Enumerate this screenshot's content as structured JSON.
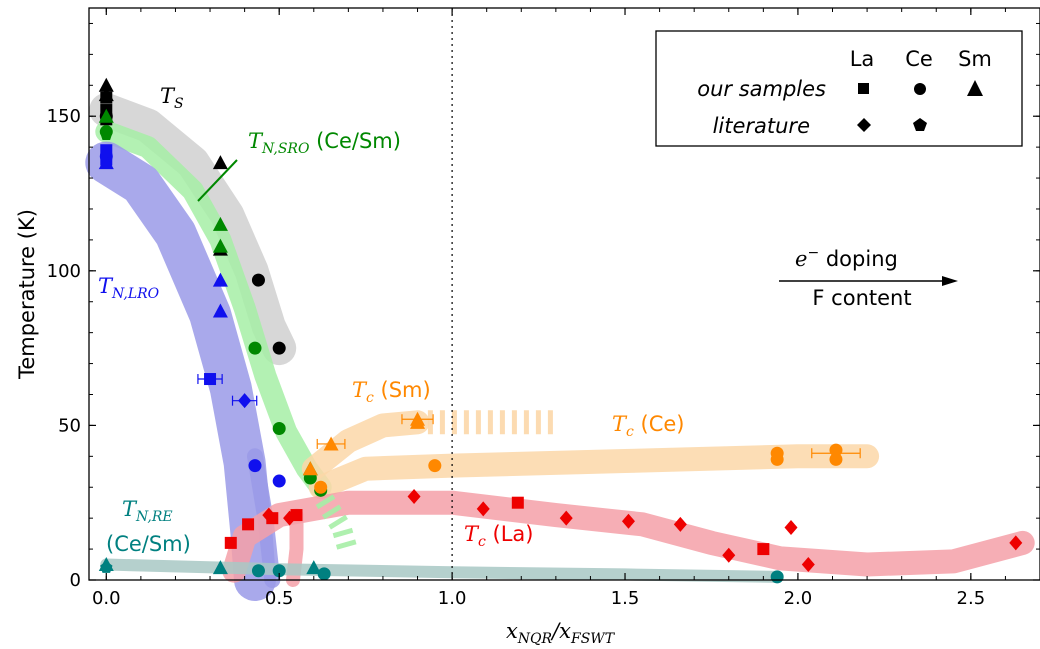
{
  "colors": {
    "La": "#ee0000",
    "Ce_green": "#008800",
    "blue": "#1010ee",
    "black": "#000000",
    "orange": "#ff8800",
    "teal": "#008080",
    "band_gray": "#d0d0d0",
    "band_green": "#a6eea6",
    "band_blue": "#9a9ae8",
    "band_orange": "#fcd7a8",
    "band_red": "#f5a0a8",
    "band_teal": "#a8c8c4"
  },
  "legend": {
    "col_la": "La",
    "col_ce": "Ce",
    "col_sm": "Sm",
    "row_ours": "our samples",
    "row_lit": "literature"
  },
  "labels": {
    "ts_main": "T",
    "ts_sub": "S",
    "tnsro_main": "T",
    "tnsro_sub": "N,SRO",
    "tnsro_suffix": " (Ce/Sm)",
    "tnlro_main": "T",
    "tnlro_sub": "N,LRO",
    "tnre_main": "T",
    "tnre_sub": "N,RE",
    "tnre_line2": "(Ce/Sm)",
    "tc_sm_main": "T",
    "tc_sm_sub": "c",
    "tc_sm_suffix": " (Sm)",
    "tc_ce_main": "T",
    "tc_ce_sub": "c",
    "tc_ce_suffix": " (Ce)",
    "tc_la_main": "T",
    "tc_la_sub": "c",
    "tc_la_suffix": " (La)",
    "doping_main": "e",
    "doping_sup": "−",
    "doping_suffix": "  doping",
    "f_content": "F content"
  },
  "chart_data": {
    "type": "scatter",
    "xlabel_main": "x",
    "xlabel_sub1": "NQR",
    "xlabel_sep": "/x",
    "xlabel_sub2": "FSWT",
    "ylabel": "Temperature (K)",
    "xlim": [
      -0.05,
      2.7
    ],
    "ylim": [
      0,
      185
    ],
    "xticks": [
      "0.0",
      "0.5",
      "1.0",
      "1.5",
      "2.0",
      "2.5"
    ],
    "xtick_values": [
      0,
      0.5,
      1.0,
      1.5,
      2.0,
      2.5
    ],
    "yticks": [
      "0",
      "50",
      "100",
      "150"
    ],
    "ytick_values": [
      0,
      50,
      100,
      150
    ],
    "dotted_vline_x": 1.0,
    "series": [
      {
        "element": "La",
        "color": "black",
        "marker": "square",
        "points": [
          [
            0,
            156
          ],
          [
            0,
            152
          ],
          [
            0,
            149
          ]
        ]
      },
      {
        "element": "Ce",
        "color": "black",
        "marker": "circle",
        "points": [
          [
            0,
            150
          ],
          [
            0.44,
            97
          ],
          [
            0.5,
            75
          ]
        ]
      },
      {
        "element": "Sm",
        "color": "black",
        "marker": "triangle",
        "points": [
          [
            0,
            160
          ],
          [
            0,
            157
          ],
          [
            0.33,
            135
          ],
          [
            0.33,
            107
          ]
        ]
      },
      {
        "element": "Ce",
        "color": "green",
        "marker": "circle",
        "points": [
          [
            0,
            145
          ],
          [
            0.43,
            75
          ],
          [
            0.5,
            49
          ],
          [
            0.59,
            33
          ],
          [
            0.62,
            29
          ]
        ]
      },
      {
        "element": "Ce",
        "color": "green",
        "marker": "pentagon",
        "points": [
          [
            0,
            144
          ]
        ]
      },
      {
        "element": "Sm",
        "color": "green",
        "marker": "triangle",
        "points": [
          [
            0,
            150
          ],
          [
            0.33,
            115
          ],
          [
            0.33,
            108
          ],
          [
            0.59,
            36
          ]
        ]
      },
      {
        "element": "La",
        "color": "blue",
        "marker": "square",
        "points": [
          [
            0,
            139
          ],
          [
            0,
            136
          ],
          [
            0.3,
            65
          ]
        ]
      },
      {
        "element": "La",
        "color": "blue",
        "marker": "diamond",
        "points": [
          [
            0.4,
            58
          ]
        ]
      },
      {
        "element": "Ce",
        "color": "blue",
        "marker": "circle",
        "points": [
          [
            0,
            137
          ],
          [
            0.43,
            37
          ],
          [
            0.5,
            32
          ]
        ]
      },
      {
        "element": "Sm",
        "color": "blue",
        "marker": "triangle",
        "points": [
          [
            0,
            135
          ],
          [
            0.33,
            97
          ],
          [
            0.33,
            87
          ]
        ]
      },
      {
        "element": "Sm",
        "color": "orange",
        "marker": "triangle",
        "points": [
          [
            0.9,
            52
          ],
          [
            0.9,
            51
          ],
          [
            0.65,
            44
          ],
          [
            0.59,
            36
          ]
        ]
      },
      {
        "element": "Ce",
        "color": "orange",
        "marker": "circle",
        "points": [
          [
            0.95,
            37
          ],
          [
            1.94,
            41
          ],
          [
            1.94,
            39
          ],
          [
            2.11,
            42
          ],
          [
            2.11,
            39
          ],
          [
            0.62,
            30
          ]
        ]
      },
      {
        "element": "La",
        "color": "red",
        "marker": "square",
        "points": [
          [
            0.36,
            12
          ],
          [
            0.41,
            18
          ],
          [
            0.48,
            20
          ],
          [
            0.55,
            21
          ],
          [
            1.19,
            25
          ],
          [
            1.9,
            10
          ]
        ]
      },
      {
        "element": "La",
        "color": "red",
        "marker": "diamond",
        "points": [
          [
            0.47,
            21
          ],
          [
            0.53,
            20
          ],
          [
            0.89,
            27
          ],
          [
            1.09,
            23
          ],
          [
            1.33,
            20
          ],
          [
            1.51,
            19
          ],
          [
            1.66,
            18
          ],
          [
            1.98,
            17
          ],
          [
            1.8,
            8
          ],
          [
            2.03,
            5
          ],
          [
            2.63,
            12
          ]
        ]
      },
      {
        "element": "Ce",
        "color": "teal",
        "marker": "circle",
        "points": [
          [
            0.44,
            3
          ],
          [
            0.5,
            3
          ],
          [
            0.63,
            2
          ],
          [
            1.94,
            1
          ]
        ]
      },
      {
        "element": "Sm",
        "color": "teal",
        "marker": "triangle",
        "points": [
          [
            0,
            5
          ],
          [
            0.33,
            4
          ],
          [
            0.6,
            4
          ]
        ]
      },
      {
        "element": "Ce",
        "color": "teal",
        "marker": "pentagon",
        "points": [
          [
            0,
            4
          ]
        ]
      }
    ]
  }
}
